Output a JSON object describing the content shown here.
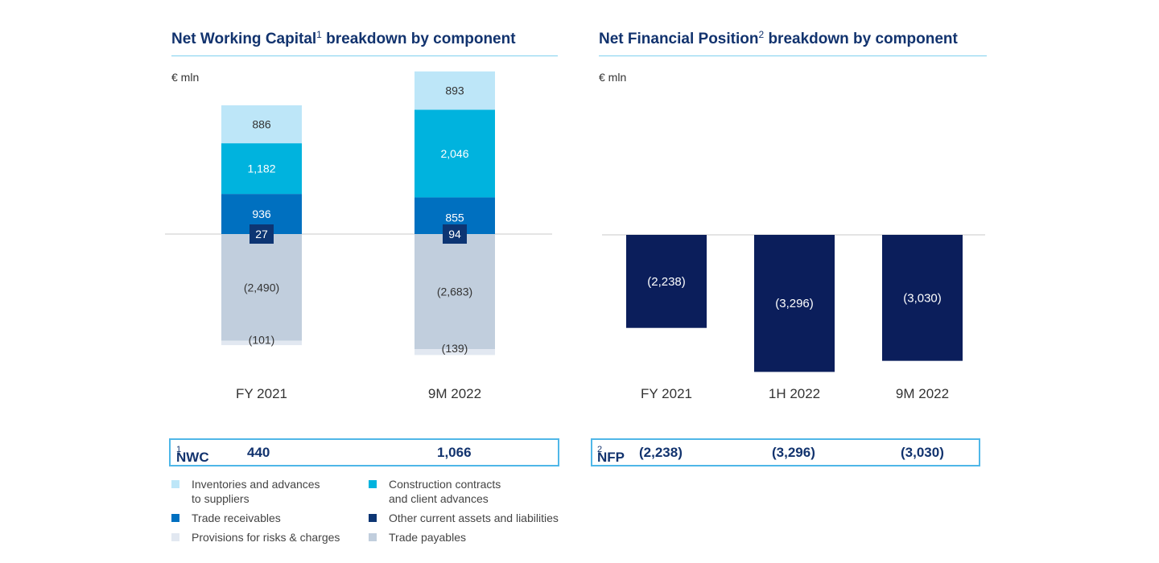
{
  "left": {
    "title_main": "Net Working Capital",
    "title_sup": "1",
    "title_rest": " breakdown by component",
    "unit": "€ mln",
    "summary": {
      "label": "NWC",
      "label_sup": "1",
      "values": [
        "440",
        "1,066"
      ]
    }
  },
  "right": {
    "title_main": "Net Financial Position",
    "title_sup": "2",
    "title_rest": " breakdown by component",
    "unit": "€ mln",
    "summary": {
      "label": "NFP",
      "label_sup": "2",
      "values": [
        "(2,238)",
        "(3,296)",
        "(3,030)"
      ]
    }
  },
  "legend": [
    {
      "label": "Inventories and advances\nto suppliers",
      "color": "#bde6f8"
    },
    {
      "label": "Construction contracts\nand client advances",
      "color": "#00b3de"
    },
    {
      "label": "Trade receivables",
      "color": "#0070c0"
    },
    {
      "label": "Other current assets and liabilities",
      "color": "#0d3573"
    },
    {
      "label": "Provisions for risks & charges",
      "color": "#e2e8f1"
    },
    {
      "label": "Trade payables",
      "color": "#c1cedd"
    }
  ],
  "chart_data": [
    {
      "type": "bar",
      "stacked": true,
      "title": "Net Working Capital breakdown by component",
      "ylabel": "€ mln",
      "categories": [
        "FY 2021",
        "9M 2022"
      ],
      "series": [
        {
          "name": "Other current assets and liabilities",
          "values": [
            27,
            94
          ],
          "labels": [
            "27",
            "94"
          ],
          "color": "#0d3573",
          "text_color": "#ffffff"
        },
        {
          "name": "Trade receivables",
          "values": [
            936,
            855
          ],
          "labels": [
            "936",
            "855"
          ],
          "color": "#0070c0",
          "text_color": "#ffffff"
        },
        {
          "name": "Construction contracts and client advances",
          "values": [
            1182,
            2046
          ],
          "labels": [
            "1,182",
            "2,046"
          ],
          "color": "#00b3de",
          "text_color": "#ffffff"
        },
        {
          "name": "Inventories and advances to suppliers",
          "values": [
            886,
            893
          ],
          "labels": [
            "886",
            "893"
          ],
          "color": "#bde6f8",
          "text_color": "#333333"
        },
        {
          "name": "Trade payables",
          "values": [
            -2490,
            -2683
          ],
          "labels": [
            "(2,490)",
            "(2,683)"
          ],
          "color": "#c1cedd",
          "text_color": "#333333"
        },
        {
          "name": "Provisions for risks & charges",
          "values": [
            -101,
            -139
          ],
          "labels": [
            "(101)",
            "(139)"
          ],
          "color": "#e2e8f1",
          "text_color": "#333333"
        }
      ]
    },
    {
      "type": "bar",
      "title": "Net Financial Position breakdown by component",
      "ylabel": "€ mln",
      "categories": [
        "FY 2021",
        "1H 2022",
        "9M 2022"
      ],
      "values": [
        -2238,
        -3296,
        -3030
      ],
      "labels": [
        "(2,238)",
        "(3,296)",
        "(3,030)"
      ],
      "color": "#0b1e5b",
      "text_color": "#ffffff"
    }
  ]
}
